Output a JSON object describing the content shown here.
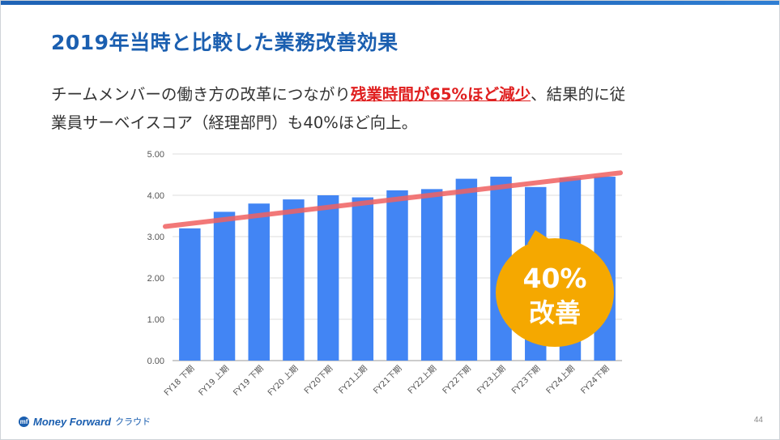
{
  "slide": {
    "title": "2019年当時と比較した業務改善効果",
    "body_line1_pre": "チームメンバーの働き方の改革につながり",
    "body_line1_highlight": "残業時間が65%ほど減少",
    "body_line1_post": "、結果的に従",
    "body_line2": "業員サーベイスコア（経理部門）も40%ほど向上。",
    "page_number": "44"
  },
  "footer": {
    "logo_name": "Money Forward",
    "logo_suffix": "クラウド"
  },
  "callout": {
    "line1": "40%",
    "line2": "改善",
    "color": "#F5A800"
  },
  "colors": {
    "title": "#1B5FB0",
    "bar": "#4285F4",
    "trend": "#F06060",
    "highlight": "#E02020"
  },
  "chart_data": {
    "type": "bar",
    "categories": [
      "FY18 下期",
      "FY19 上期",
      "FY19 下期",
      "FY20 上期",
      "FY20下期",
      "FY21上期",
      "FY21下期",
      "FY22上期",
      "FY22下期",
      "FY23上期",
      "FY23下期",
      "FY24上期",
      "FY24下期"
    ],
    "values": [
      3.2,
      3.6,
      3.8,
      3.9,
      4.0,
      3.95,
      4.12,
      4.15,
      4.4,
      4.45,
      4.2,
      4.42,
      4.45
    ],
    "ylim": [
      0,
      5
    ],
    "yticks": [
      "0.00",
      "1.00",
      "2.00",
      "3.00",
      "4.00",
      "5.00"
    ],
    "trend_line": {
      "start": 3.5,
      "end": 4.7
    },
    "grid": true
  }
}
